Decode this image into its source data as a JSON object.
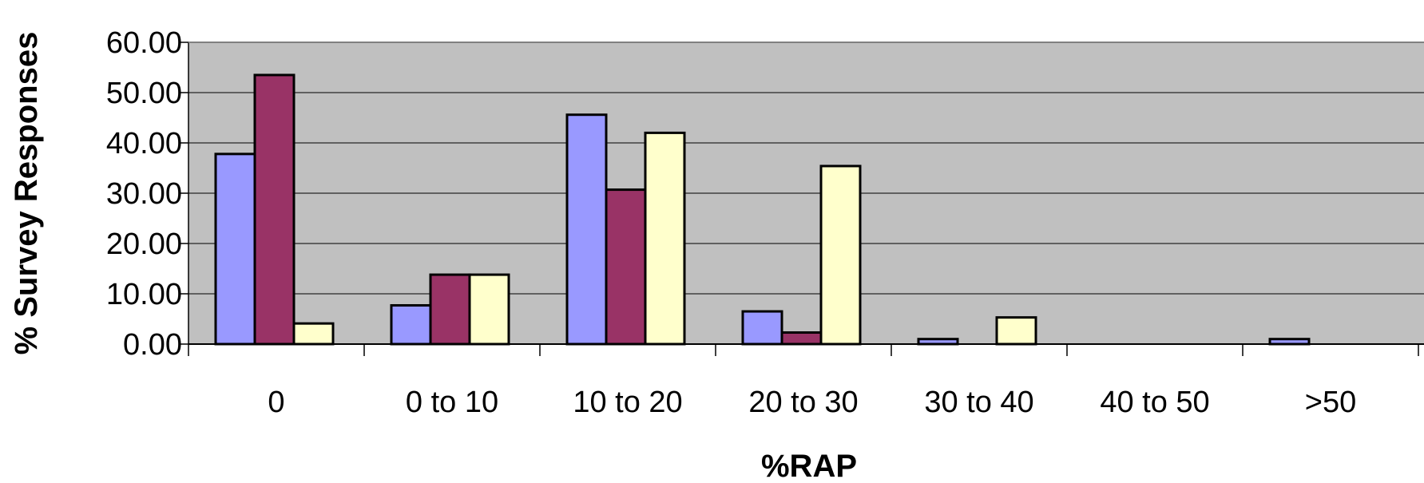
{
  "chart_data": {
    "type": "bar",
    "title": "",
    "xlabel": "%RAP",
    "ylabel": "% Survey Responses",
    "categories": [
      "0",
      "0 to 10",
      "10 to 20",
      "20 to 30",
      "30 to 40",
      "40 to 50",
      ">50"
    ],
    "series": [
      {
        "color": "#9999ff",
        "values": [
          37.8,
          7.7,
          45.6,
          6.5,
          1.0,
          0.0,
          1.0
        ]
      },
      {
        "color": "#993366",
        "values": [
          53.5,
          13.8,
          30.7,
          2.3,
          0.0,
          0.0,
          0.0
        ]
      },
      {
        "color": "#ffffcc",
        "values": [
          4.1,
          13.8,
          42.0,
          35.4,
          5.3,
          0.0,
          0.0
        ]
      }
    ],
    "ylim": [
      0,
      60
    ],
    "yticks": [
      "0.00",
      "10.00",
      "20.00",
      "30.00",
      "40.00",
      "50.00",
      "60.00"
    ],
    "grid": true,
    "plot_background": "#c0c0c0",
    "legend": "none"
  }
}
